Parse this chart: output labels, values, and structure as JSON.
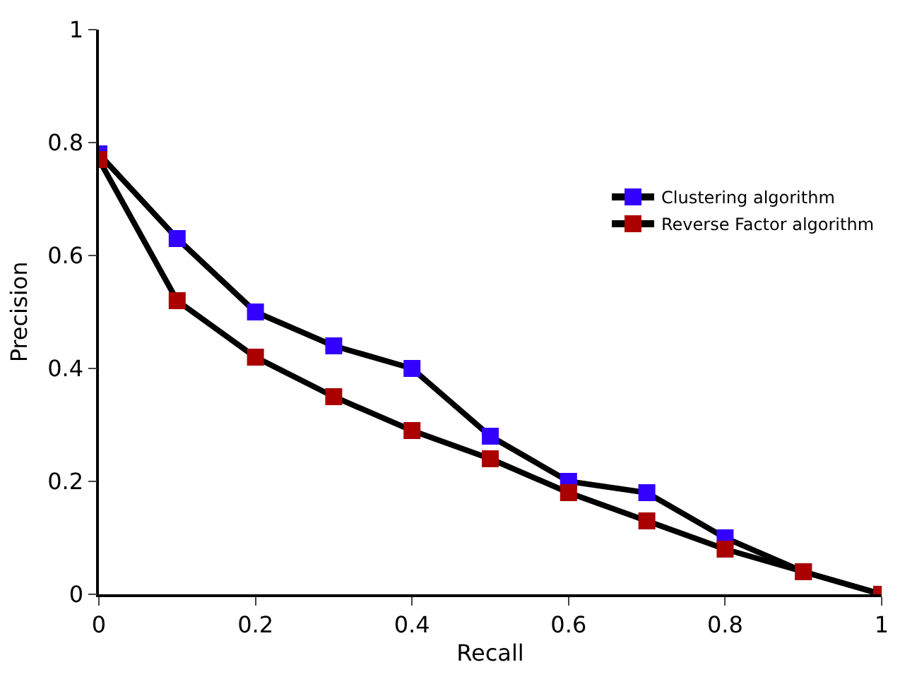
{
  "chart_data": {
    "type": "line",
    "xlabel": "Recall",
    "ylabel": "Precision",
    "x": [
      0,
      0.1,
      0.2,
      0.3,
      0.4,
      0.5,
      0.6,
      0.7,
      0.8,
      0.9,
      1
    ],
    "series": [
      {
        "name": "Clustering algorithm",
        "color": "#3300ff",
        "values": [
          0.78,
          0.63,
          0.5,
          0.44,
          0.4,
          0.28,
          0.2,
          0.18,
          0.1,
          0.04,
          0
        ]
      },
      {
        "name": "Reverse Factor algorithm",
        "color": "#aa0000",
        "values": [
          0.77,
          0.52,
          0.42,
          0.35,
          0.29,
          0.24,
          0.18,
          0.13,
          0.08,
          0.04,
          0
        ]
      }
    ],
    "xlim": [
      0,
      1
    ],
    "ylim": [
      0,
      1
    ],
    "xticks": [
      0,
      0.2,
      0.4,
      0.6,
      0.8,
      1
    ],
    "yticks": [
      0,
      0.2,
      0.4,
      0.6,
      0.8,
      1
    ],
    "legend": "right",
    "marker": "square",
    "line_style": "solid"
  }
}
